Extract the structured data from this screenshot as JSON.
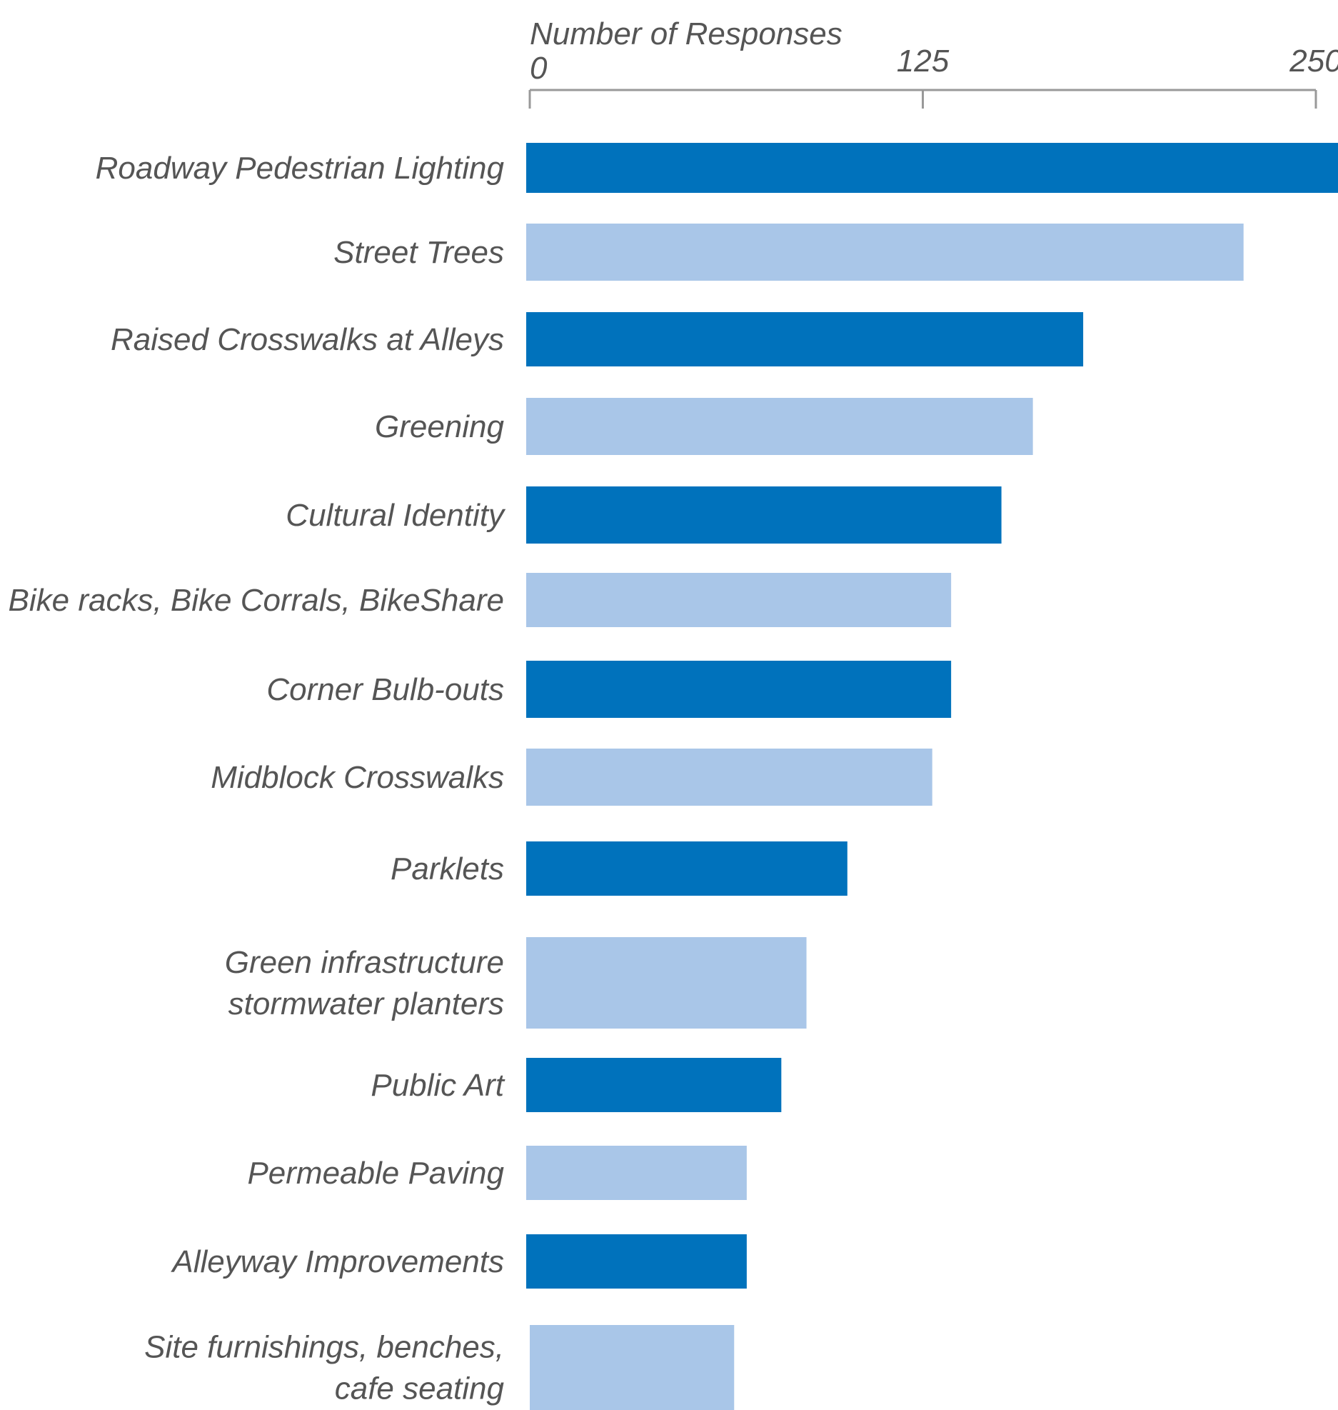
{
  "chart_data": {
    "type": "bar",
    "orientation": "horizontal",
    "x_axis_label": "Number of Responses",
    "x_ticks": [
      "0",
      "125",
      "250"
    ],
    "xlim": [
      0,
      250
    ],
    "grid": false,
    "categories": [
      [
        "Roadway Pedestrian Lighting"
      ],
      [
        "Street Trees"
      ],
      [
        "Raised Crosswalks at Alleys"
      ],
      [
        "Greening"
      ],
      [
        "Cultural Identity"
      ],
      [
        "Bike racks, Bike Corrals, BikeShare"
      ],
      [
        "Corner Bulb-outs"
      ],
      [
        "Midblock Crosswalks"
      ],
      [
        "Parklets"
      ],
      [
        "Green infrastructure",
        "stormwater planters"
      ],
      [
        "Public Art"
      ],
      [
        "Permeable Paving"
      ],
      [
        "Alleyway Improvements"
      ],
      [
        "Site furnishings, benches,",
        "cafe seating"
      ]
    ],
    "values": [
      262,
      227,
      176,
      160,
      150,
      134,
      134,
      128,
      101,
      88,
      80,
      69,
      69,
      65
    ],
    "colors": {
      "dark": "#0072bc",
      "light": "#a9c6e8",
      "axis": "#999999",
      "text": "#555555"
    }
  }
}
